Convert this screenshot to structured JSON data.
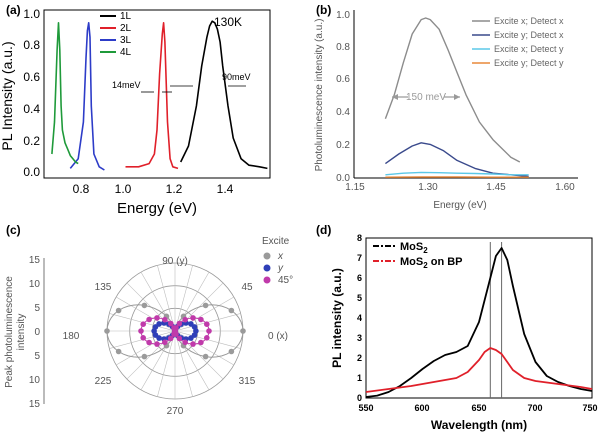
{
  "chart_data": [
    {
      "panel": "(a)",
      "type": "line",
      "xlabel": "Energy (eV)",
      "ylabel": "PL Intensity (a.u.)",
      "xlim": [
        0.7,
        1.56
      ],
      "ylim": [
        0,
        1.05
      ],
      "xticks": [
        "0.8",
        "1.0",
        "1.2",
        "1.4"
      ],
      "yticks": [
        "0.0",
        "0.2",
        "0.4",
        "0.6",
        "0.8",
        "1.0"
      ],
      "annotations": [
        "130K",
        "14meV",
        "90meV"
      ],
      "legend_position": "top-center",
      "series": [
        {
          "name": "1L",
          "color": "#000000",
          "x": [
            1.22,
            1.25,
            1.28,
            1.3,
            1.32,
            1.33,
            1.34,
            1.35,
            1.36,
            1.37,
            1.38,
            1.4,
            1.42,
            1.45,
            1.48,
            1.52,
            1.55
          ],
          "y": [
            0.1,
            0.2,
            0.45,
            0.7,
            0.88,
            0.95,
            0.98,
            0.97,
            0.93,
            0.85,
            0.7,
            0.45,
            0.25,
            0.12,
            0.08,
            0.07,
            0.06
          ]
        },
        {
          "name": "2L",
          "color": "#e0202a",
          "x": [
            1.01,
            1.06,
            1.1,
            1.12,
            1.13,
            1.14,
            1.15,
            1.155,
            1.16,
            1.17,
            1.18,
            1.19,
            1.21
          ],
          "y": [
            0.07,
            0.07,
            0.09,
            0.15,
            0.3,
            0.65,
            0.9,
            0.97,
            0.85,
            0.35,
            0.12,
            0.07,
            0.06
          ]
        },
        {
          "name": "3L",
          "color": "#2d3cc8",
          "x": [
            0.8,
            0.83,
            0.85,
            0.86,
            0.865,
            0.87,
            0.875,
            0.88,
            0.89,
            0.91,
            0.93
          ],
          "y": [
            0.06,
            0.12,
            0.35,
            0.75,
            0.92,
            0.97,
            0.88,
            0.45,
            0.15,
            0.07,
            0.05
          ]
        },
        {
          "name": "4L",
          "color": "#1f9a3a",
          "x": [
            0.73,
            0.74,
            0.75,
            0.755,
            0.76,
            0.765,
            0.77,
            0.78,
            0.79,
            0.8,
            0.81,
            0.82,
            0.83
          ],
          "y": [
            0.15,
            0.35,
            0.8,
            0.97,
            0.8,
            0.45,
            0.3,
            0.22,
            0.18,
            0.14,
            0.12,
            0.1,
            0.09
          ]
        }
      ]
    },
    {
      "panel": "(b)",
      "type": "line",
      "xlabel": "Energy (eV)",
      "ylabel": "Photoluminescence intensity (a.u.)",
      "xlim": [
        1.15,
        1.65
      ],
      "ylim": [
        0,
        1.05
      ],
      "xticks": [
        "1.15",
        "1.30",
        "1.45",
        "1.60"
      ],
      "yticks": [
        "0.0",
        "0.2",
        "0.4",
        "0.6",
        "0.8",
        "1.0"
      ],
      "annotations": [
        "150 meV"
      ],
      "legend_position": "top-right",
      "series": [
        {
          "name": "Excite x; Detect x",
          "color": "#8c8c8c",
          "x": [
            1.22,
            1.24,
            1.26,
            1.28,
            1.3,
            1.31,
            1.32,
            1.34,
            1.36,
            1.38,
            1.4,
            1.43,
            1.46,
            1.5,
            1.52
          ],
          "y": [
            0.37,
            0.52,
            0.72,
            0.9,
            0.99,
            1.0,
            0.99,
            0.93,
            0.8,
            0.66,
            0.52,
            0.35,
            0.24,
            0.13,
            0.1
          ]
        },
        {
          "name": "Excite y; Detect x",
          "color": "#3a4a8c",
          "x": [
            1.22,
            1.25,
            1.28,
            1.3,
            1.32,
            1.35,
            1.38,
            1.42,
            1.46,
            1.5,
            1.54
          ],
          "y": [
            0.09,
            0.15,
            0.2,
            0.22,
            0.21,
            0.17,
            0.11,
            0.06,
            0.03,
            0.02,
            0.01
          ]
        },
        {
          "name": "Excite x; Detect y",
          "color": "#5bc8e8",
          "x": [
            1.22,
            1.26,
            1.3,
            1.34,
            1.38,
            1.42,
            1.46,
            1.5,
            1.54
          ],
          "y": [
            0.02,
            0.03,
            0.035,
            0.033,
            0.03,
            0.028,
            0.025,
            0.02,
            0.02
          ]
        },
        {
          "name": "Excite y; Detect y",
          "color": "#e8893a",
          "x": [
            1.22,
            1.3,
            1.38,
            1.46,
            1.54
          ],
          "y": [
            0.005,
            0.006,
            0.006,
            0.005,
            0.005
          ]
        }
      ]
    },
    {
      "panel": "(c)",
      "type": "scatter",
      "polar": true,
      "ylabel": "Peak photoluminescence intensity",
      "radial_max": 15,
      "radial_ticks": [
        "15",
        "10",
        "5",
        "0",
        "5",
        "10",
        "15"
      ],
      "angle_labels": [
        "90 (y)",
        "45",
        "0 (x)",
        "315",
        "270",
        "225",
        "180",
        "135"
      ],
      "legend_title": "Excite",
      "series": [
        {
          "name": "x",
          "color": "#9a9a9a",
          "amplitude": 15,
          "phase_deg": 0
        },
        {
          "name": "y",
          "color": "#2f3fb8",
          "amplitude": 4.6,
          "phase_deg": 0
        },
        {
          "name": "45°",
          "color": "#c03aaa",
          "amplitude": 7.5,
          "phase_deg": 0
        }
      ]
    },
    {
      "panel": "(d)",
      "type": "line",
      "xlabel": "Wavelength (nm)",
      "ylabel": "PL intensity (a.u.)",
      "xlim": [
        550,
        750
      ],
      "ylim": [
        0,
        8
      ],
      "xticks": [
        "550",
        "600",
        "650",
        "700",
        "750"
      ],
      "yticks": [
        "0",
        "1",
        "2",
        "3",
        "4",
        "5",
        "6",
        "7",
        "8"
      ],
      "reference_lines_nm": [
        660,
        670
      ],
      "legend_position": "top-left",
      "series": [
        {
          "name": "MoS2",
          "color": "#000000",
          "x": [
            550,
            560,
            570,
            580,
            590,
            600,
            610,
            620,
            630,
            640,
            650,
            660,
            665,
            670,
            675,
            680,
            690,
            700,
            710,
            720,
            730,
            740,
            750
          ],
          "y": [
            0.05,
            0.12,
            0.3,
            0.6,
            1.0,
            1.45,
            1.85,
            2.15,
            2.3,
            2.6,
            3.8,
            6.0,
            7.1,
            7.5,
            6.9,
            5.6,
            3.2,
            1.8,
            1.1,
            0.8,
            0.6,
            0.45,
            0.35
          ]
        },
        {
          "name": "MoS2 on BP",
          "color": "#e0202a",
          "x": [
            550,
            570,
            590,
            610,
            630,
            640,
            650,
            655,
            660,
            665,
            670,
            680,
            690,
            700,
            720,
            740,
            750
          ],
          "y": [
            0.3,
            0.45,
            0.6,
            0.8,
            1.0,
            1.3,
            1.9,
            2.3,
            2.5,
            2.4,
            2.2,
            1.4,
            1.0,
            0.85,
            0.7,
            0.55,
            0.45
          ]
        }
      ]
    }
  ],
  "labels": {
    "a": {
      "panel": "(a)",
      "xlabel": "Energy (eV)",
      "ylabel": "PL Intensity (a.u.)",
      "temp": "130K",
      "fwhm1": "14meV",
      "fwhm2": "90meV",
      "x0": "0.8",
      "x1": "1.0",
      "x2": "1.2",
      "x3": "1.4",
      "y0": "0.0",
      "y1": "0.2",
      "y2": "0.4",
      "y3": "0.6",
      "y4": "0.8",
      "y5": "1.0",
      "leg0": "1L",
      "leg1": "2L",
      "leg2": "3L",
      "leg3": "4L"
    },
    "b": {
      "panel": "(b)",
      "xlabel": "Energy (eV)",
      "ylabel": "Photoluminescence intensity (a.u.)",
      "width": "150 meV",
      "x0": "1.15",
      "x1": "1.30",
      "x2": "1.45",
      "x3": "1.60",
      "y0": "0.0",
      "y1": "0.2",
      "y2": "0.4",
      "y3": "0.6",
      "y4": "0.8",
      "y5": "1.0",
      "leg0": "Excite x; Detect x",
      "leg1": "Excite y; Detect x",
      "leg2": "Excite x; Detect y",
      "leg3": "Excite y; Detect y"
    },
    "c": {
      "panel": "(c)",
      "ylabel1": "Peak photoluminescence",
      "ylabel2": "intensity",
      "legend_title": "Excite",
      "leg0": "x",
      "leg1": "y",
      "leg2": "45°",
      "ang90": "90 (y)",
      "ang45": "45",
      "ang0": "0 (x)",
      "ang315": "315",
      "ang270": "270",
      "ang225": "225",
      "ang180": "180",
      "ang135": "135",
      "r0": "15",
      "r1": "10",
      "r2": "5",
      "r3": "0",
      "r4": "5",
      "r5": "10",
      "r6": "15"
    },
    "d": {
      "panel": "(d)",
      "xlabel": "Wavelength (nm)",
      "ylabel": "PL intensity (a.u.)",
      "leg0": "MoS",
      "leg0sub": "2",
      "leg1": "MoS",
      "leg1sub": "2",
      "leg1tail": " on BP",
      "x0": "550",
      "x1": "600",
      "x2": "650",
      "x3": "700",
      "x4": "750",
      "y0": "0",
      "y1": "1",
      "y2": "2",
      "y3": "3",
      "y4": "4",
      "y5": "5",
      "y6": "6",
      "y7": "7",
      "y8": "8"
    }
  }
}
